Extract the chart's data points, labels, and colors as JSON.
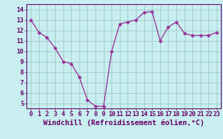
{
  "x": [
    0,
    1,
    2,
    3,
    4,
    5,
    6,
    7,
    8,
    9,
    10,
    11,
    12,
    13,
    14,
    15,
    16,
    17,
    18,
    19,
    20,
    21,
    22,
    23
  ],
  "y": [
    13.0,
    11.8,
    11.3,
    10.3,
    9.0,
    8.8,
    7.5,
    5.3,
    4.7,
    4.7,
    10.0,
    12.6,
    12.8,
    13.0,
    13.7,
    13.8,
    11.0,
    12.3,
    12.8,
    11.7,
    11.5,
    11.5,
    11.5,
    11.8
  ],
  "line_color": "#993399",
  "marker": "D",
  "markersize": 2.5,
  "linewidth": 1.0,
  "xlabel": "Windchill (Refroidissement éolien,°C)",
  "xlabel_fontsize": 7.5,
  "ylabel_ticks": [
    5,
    6,
    7,
    8,
    9,
    10,
    11,
    12,
    13,
    14
  ],
  "xlim": [
    -0.5,
    23.5
  ],
  "ylim": [
    4.5,
    14.5
  ],
  "background_color": "#c8eef0",
  "grid_color": "#a0cccc",
  "tick_fontsize": 6.5
}
